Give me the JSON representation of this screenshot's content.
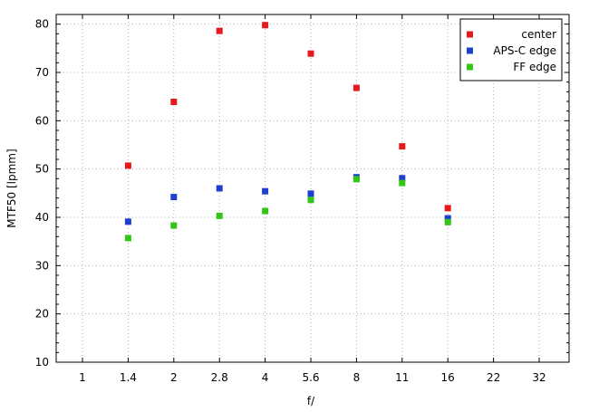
{
  "chart_data": {
    "type": "scatter",
    "title": "",
    "xlabel": "f/",
    "ylabel": "MTF50 [lpmm]",
    "x_scale": "log2-stops",
    "categories": [
      "1",
      "1.4",
      "2",
      "2.8",
      "4",
      "5.6",
      "8",
      "11",
      "16",
      "22",
      "32"
    ],
    "ylim": [
      10,
      82
    ],
    "yticks": [
      10,
      20,
      30,
      40,
      50,
      60,
      70,
      80
    ],
    "grid": true,
    "legend_position": "top-right",
    "series": [
      {
        "name": "center",
        "color": "#e41a1c",
        "x": [
          "1.4",
          "2",
          "2.8",
          "4",
          "5.6",
          "8",
          "11",
          "16"
        ],
        "values": [
          50.7,
          63.9,
          78.6,
          79.8,
          73.9,
          66.8,
          54.7,
          41.9
        ]
      },
      {
        "name": "APS-C edge",
        "color": "#1f3fd1",
        "x": [
          "1.4",
          "2",
          "2.8",
          "4",
          "5.6",
          "8",
          "11",
          "16"
        ],
        "values": [
          39.1,
          44.2,
          46.0,
          45.4,
          44.9,
          48.3,
          48.1,
          39.8
        ]
      },
      {
        "name": "FF edge",
        "color": "#33c619",
        "x": [
          "1.4",
          "2",
          "2.8",
          "4",
          "5.6",
          "8",
          "11",
          "16"
        ],
        "values": [
          35.7,
          38.3,
          40.3,
          41.3,
          43.6,
          47.9,
          47.1,
          39.0
        ]
      }
    ]
  }
}
